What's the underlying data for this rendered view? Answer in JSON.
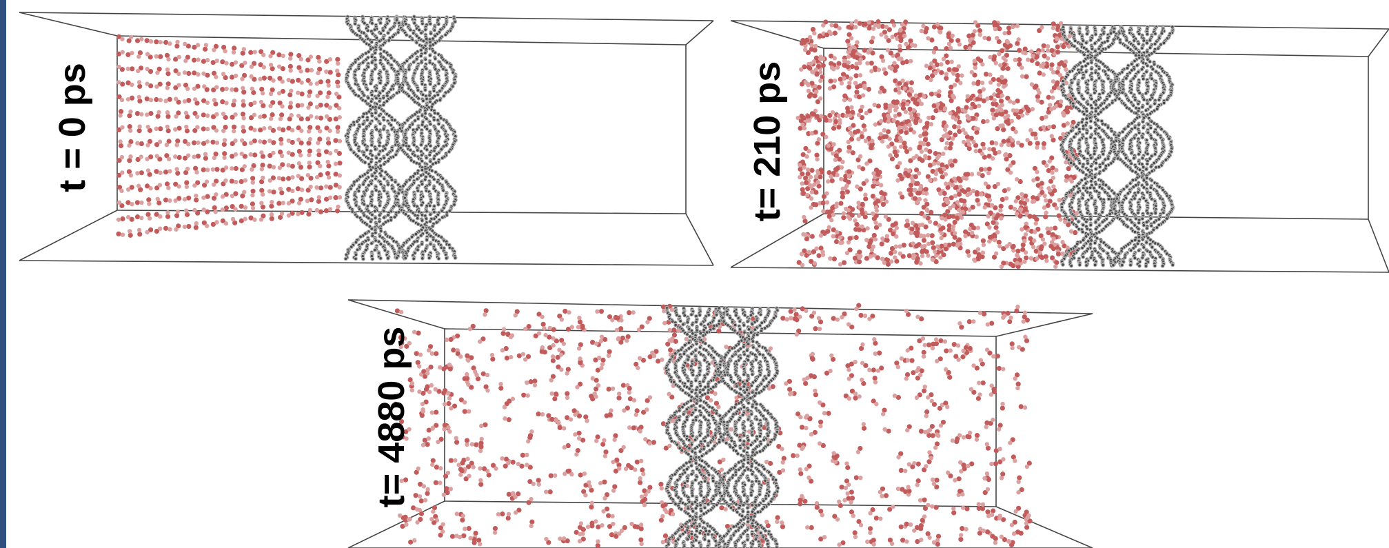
{
  "figure": {
    "colors": {
      "accent_bar": "#2f4f7f",
      "box_edge": "#444444",
      "carbon_dark": "#4a4a4a",
      "carbon_light": "#b5b5b5",
      "oxygen_red": "#c25b5b",
      "oxygen_pink": "#dba0a0"
    },
    "panels": [
      {
        "id": "t0",
        "label": "t = 0 ps",
        "molecule_arrangement": "lattice"
      },
      {
        "id": "t210",
        "label": "t= 210 ps",
        "molecule_arrangement": "dense-left"
      },
      {
        "id": "t4880",
        "label": "t= 4880 ps",
        "molecule_arrangement": "dispersed"
      }
    ]
  }
}
